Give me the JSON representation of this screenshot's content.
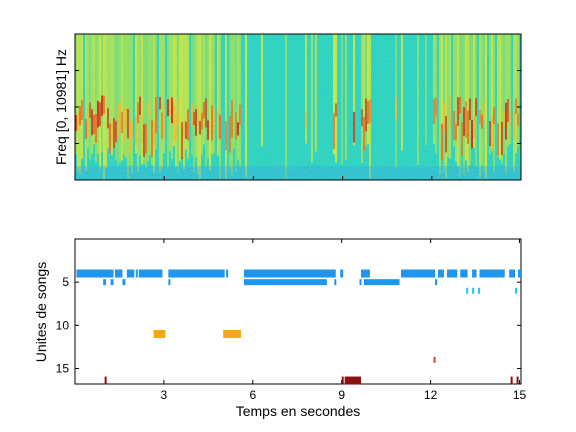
{
  "chart_data": [
    {
      "type": "heatmap",
      "ylabel": "Freq [0, 10981] Hz",
      "colormap": "jet",
      "xlim": [
        0,
        15
      ],
      "grid": false
    },
    {
      "type": "scatter",
      "xlabel": "Temps en secondes",
      "ylabel": "Unites de songs",
      "xlim": [
        0.0,
        15.05
      ],
      "ylim": [
        16.8,
        0
      ],
      "xticks": [
        3,
        6,
        9,
        12,
        15
      ],
      "yticks": [
        5,
        10,
        15
      ],
      "grid": false,
      "units": [
        {
          "unit": 4,
          "color": "#1e96f0",
          "segments": [
            [
              0.05,
              1.3
            ],
            [
              1.35,
              1.6
            ],
            [
              1.75,
              2.0
            ],
            [
              2.05,
              2.1
            ],
            [
              2.15,
              2.95
            ],
            [
              3.15,
              5.05
            ],
            [
              5.1,
              5.15
            ],
            [
              5.7,
              8.8
            ],
            [
              8.95,
              9.05
            ],
            [
              9.65,
              9.95
            ],
            [
              11.0,
              12.15
            ],
            [
              12.25,
              12.45
            ],
            [
              12.55,
              12.9
            ],
            [
              13.0,
              13.25
            ],
            [
              13.4,
              13.55
            ],
            [
              13.65,
              14.5
            ],
            [
              14.65,
              14.85
            ],
            [
              14.95,
              15.05
            ]
          ]
        },
        {
          "unit": 5,
          "color": "#1e96f0",
          "segments": [
            [
              0.95,
              1.05
            ],
            [
              1.2,
              1.3
            ],
            [
              1.6,
              1.7
            ],
            [
              3.15,
              3.2
            ],
            [
              5.7,
              8.5
            ],
            [
              8.75,
              8.8
            ],
            [
              9.6,
              9.65
            ],
            [
              9.75,
              10.95
            ],
            [
              12.15,
              12.2
            ]
          ]
        },
        {
          "unit": 6,
          "color": "#1ec8f0",
          "segments": [
            [
              13.2,
              13.25
            ],
            [
              13.4,
              13.45
            ],
            [
              13.6,
              13.65
            ],
            [
              14.85,
              14.9
            ]
          ]
        },
        {
          "unit": 11,
          "color": "#f5a814",
          "segments": [
            [
              2.65,
              3.05
            ],
            [
              5.0,
              5.6
            ]
          ]
        },
        {
          "unit": 14,
          "color": "#e03c3c",
          "segments": [
            [
              12.1,
              12.15
            ]
          ]
        },
        {
          "unit": 16.4,
          "color": "#8c0f0f",
          "segments": [
            [
              1.0,
              1.05
            ],
            [
              9.0,
              9.05
            ],
            [
              9.1,
              9.65
            ],
            [
              14.7,
              14.75
            ],
            [
              14.9,
              14.95
            ]
          ]
        }
      ]
    }
  ]
}
